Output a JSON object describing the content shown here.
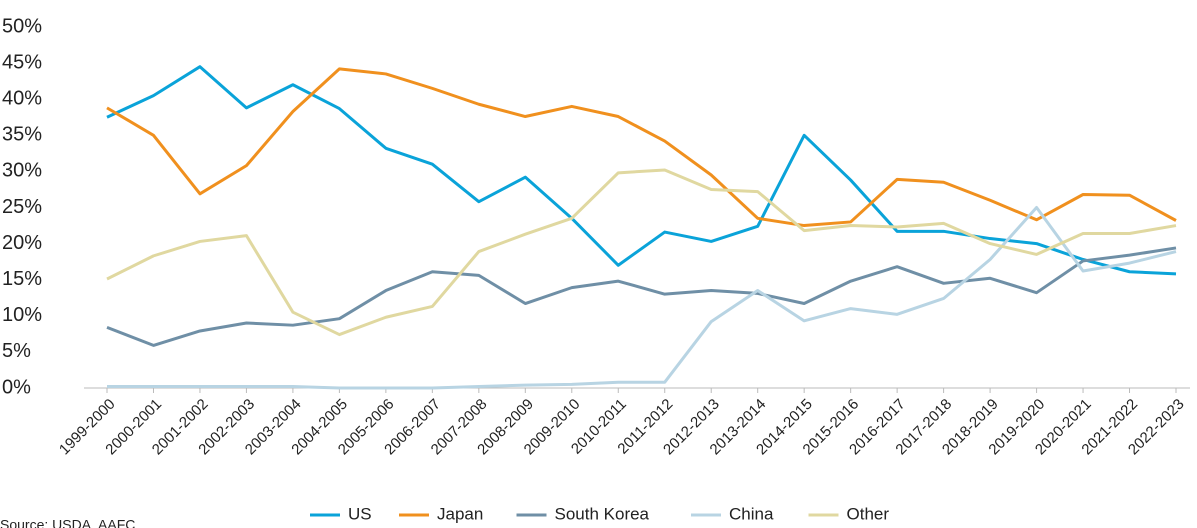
{
  "chart_data": {
    "type": "line",
    "categories": [
      "1999-2000",
      "2000-2001",
      "2001-2002",
      "2002-2003",
      "2003-2004",
      "2004-2005",
      "2005-2006",
      "2006-2007",
      "2007-2008",
      "2008-2009",
      "2009-2010",
      "2010-2011",
      "2011-2012",
      "2012-2013",
      "2013-2014",
      "2014-2015",
      "2015-2016",
      "2016-2017",
      "2017-2018",
      "2018-2019",
      "2019-2020",
      "2020-2021",
      "2021-2022",
      "2022-2023"
    ],
    "series": [
      {
        "name": "US",
        "color": "#0aa3d9",
        "values": [
          37.5,
          40.5,
          44.5,
          38.8,
          42,
          38.7,
          33.2,
          31,
          25.8,
          29.2,
          23.5,
          17,
          21.6,
          20.3,
          22.4,
          35,
          28.8,
          21.7,
          21.7,
          20.7,
          20,
          17.8,
          16.1,
          15.8
        ]
      },
      {
        "name": "Japan",
        "color": "#f0901e",
        "values": [
          38.8,
          35,
          26.9,
          30.8,
          38.3,
          44.2,
          43.5,
          41.5,
          39.3,
          37.6,
          39,
          37.6,
          34.2,
          29.5,
          23.5,
          22.5,
          23,
          28.9,
          28.5,
          26,
          23.3,
          26.8,
          26.7,
          23.2
        ]
      },
      {
        "name": "South Korea",
        "color": "#6f8fa6",
        "values": [
          8.4,
          5.9,
          7.9,
          9,
          8.7,
          9.6,
          13.5,
          16.1,
          15.6,
          11.7,
          13.9,
          14.8,
          13,
          13.5,
          13.1,
          11.7,
          14.8,
          16.8,
          14.5,
          15.2,
          13.2,
          17.6,
          18.4,
          19.4
        ]
      },
      {
        "name": "China",
        "color": "#b8d4e3",
        "values": [
          0.2,
          0.2,
          0.2,
          0.2,
          0.2,
          0,
          0,
          0,
          0.2,
          0.4,
          0.5,
          0.8,
          0.8,
          9.2,
          13.5,
          9.3,
          11,
          10.2,
          12.4,
          17.8,
          25,
          16.2,
          17.3,
          18.9
        ]
      },
      {
        "name": "Other",
        "color": "#e0d8a0",
        "values": [
          15.1,
          18.3,
          20.3,
          21.1,
          10.5,
          7.4,
          9.8,
          11.3,
          18.9,
          21.3,
          23.5,
          29.8,
          30.2,
          27.5,
          27.2,
          21.8,
          22.5,
          22.3,
          22.8,
          20,
          18.5,
          21.4,
          21.4,
          22.5
        ]
      }
    ],
    "ylim": [
      0,
      50
    ],
    "yticks": [
      {
        "value": 0,
        "label": "0%"
      },
      {
        "value": 5,
        "label": "5%"
      },
      {
        "value": 10,
        "label": "10%"
      },
      {
        "value": 15,
        "label": "15%"
      },
      {
        "value": 20,
        "label": "20%"
      },
      {
        "value": 25,
        "label": "25%"
      },
      {
        "value": 30,
        "label": "30%"
      },
      {
        "value": 35,
        "label": "35%"
      },
      {
        "value": 40,
        "label": "40%"
      },
      {
        "value": 45,
        "label": "45%"
      },
      {
        "value": 50,
        "label": "50%"
      }
    ],
    "grid": false,
    "legend": "bottom",
    "source": "Source: USDA, AAFC"
  }
}
